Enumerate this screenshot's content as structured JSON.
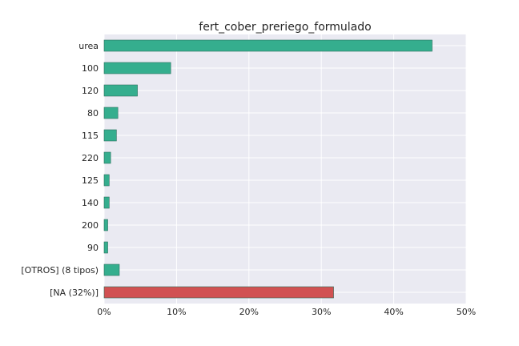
{
  "chart_data": {
    "type": "bar",
    "orientation": "horizontal",
    "title": "fert_cober_preriego_formulado",
    "xlabel": "",
    "ylabel": "",
    "categories": [
      "urea",
      "100",
      "120",
      "80",
      "115",
      "220",
      "125",
      "140",
      "200",
      "90",
      "[OTROS] (8 tipos)",
      "[NA (32%)]"
    ],
    "values": [
      45.3,
      9.2,
      4.6,
      1.9,
      1.7,
      0.9,
      0.7,
      0.7,
      0.5,
      0.5,
      2.1,
      31.7
    ],
    "bar_colors": [
      "#35ae8e",
      "#35ae8e",
      "#35ae8e",
      "#35ae8e",
      "#35ae8e",
      "#35ae8e",
      "#35ae8e",
      "#35ae8e",
      "#35ae8e",
      "#35ae8e",
      "#35ae8e",
      "#d15152"
    ],
    "xlim": [
      0,
      50
    ],
    "xticks": [
      0,
      10,
      20,
      30,
      40,
      50
    ],
    "xtick_labels": [
      "0%",
      "10%",
      "20%",
      "30%",
      "40%",
      "50%"
    ],
    "grid": true,
    "legend": "none",
    "colors": {
      "plot_background": "#eaeaf2",
      "grid": "#ffffff",
      "bar_edge": "#2b6f5d"
    }
  }
}
